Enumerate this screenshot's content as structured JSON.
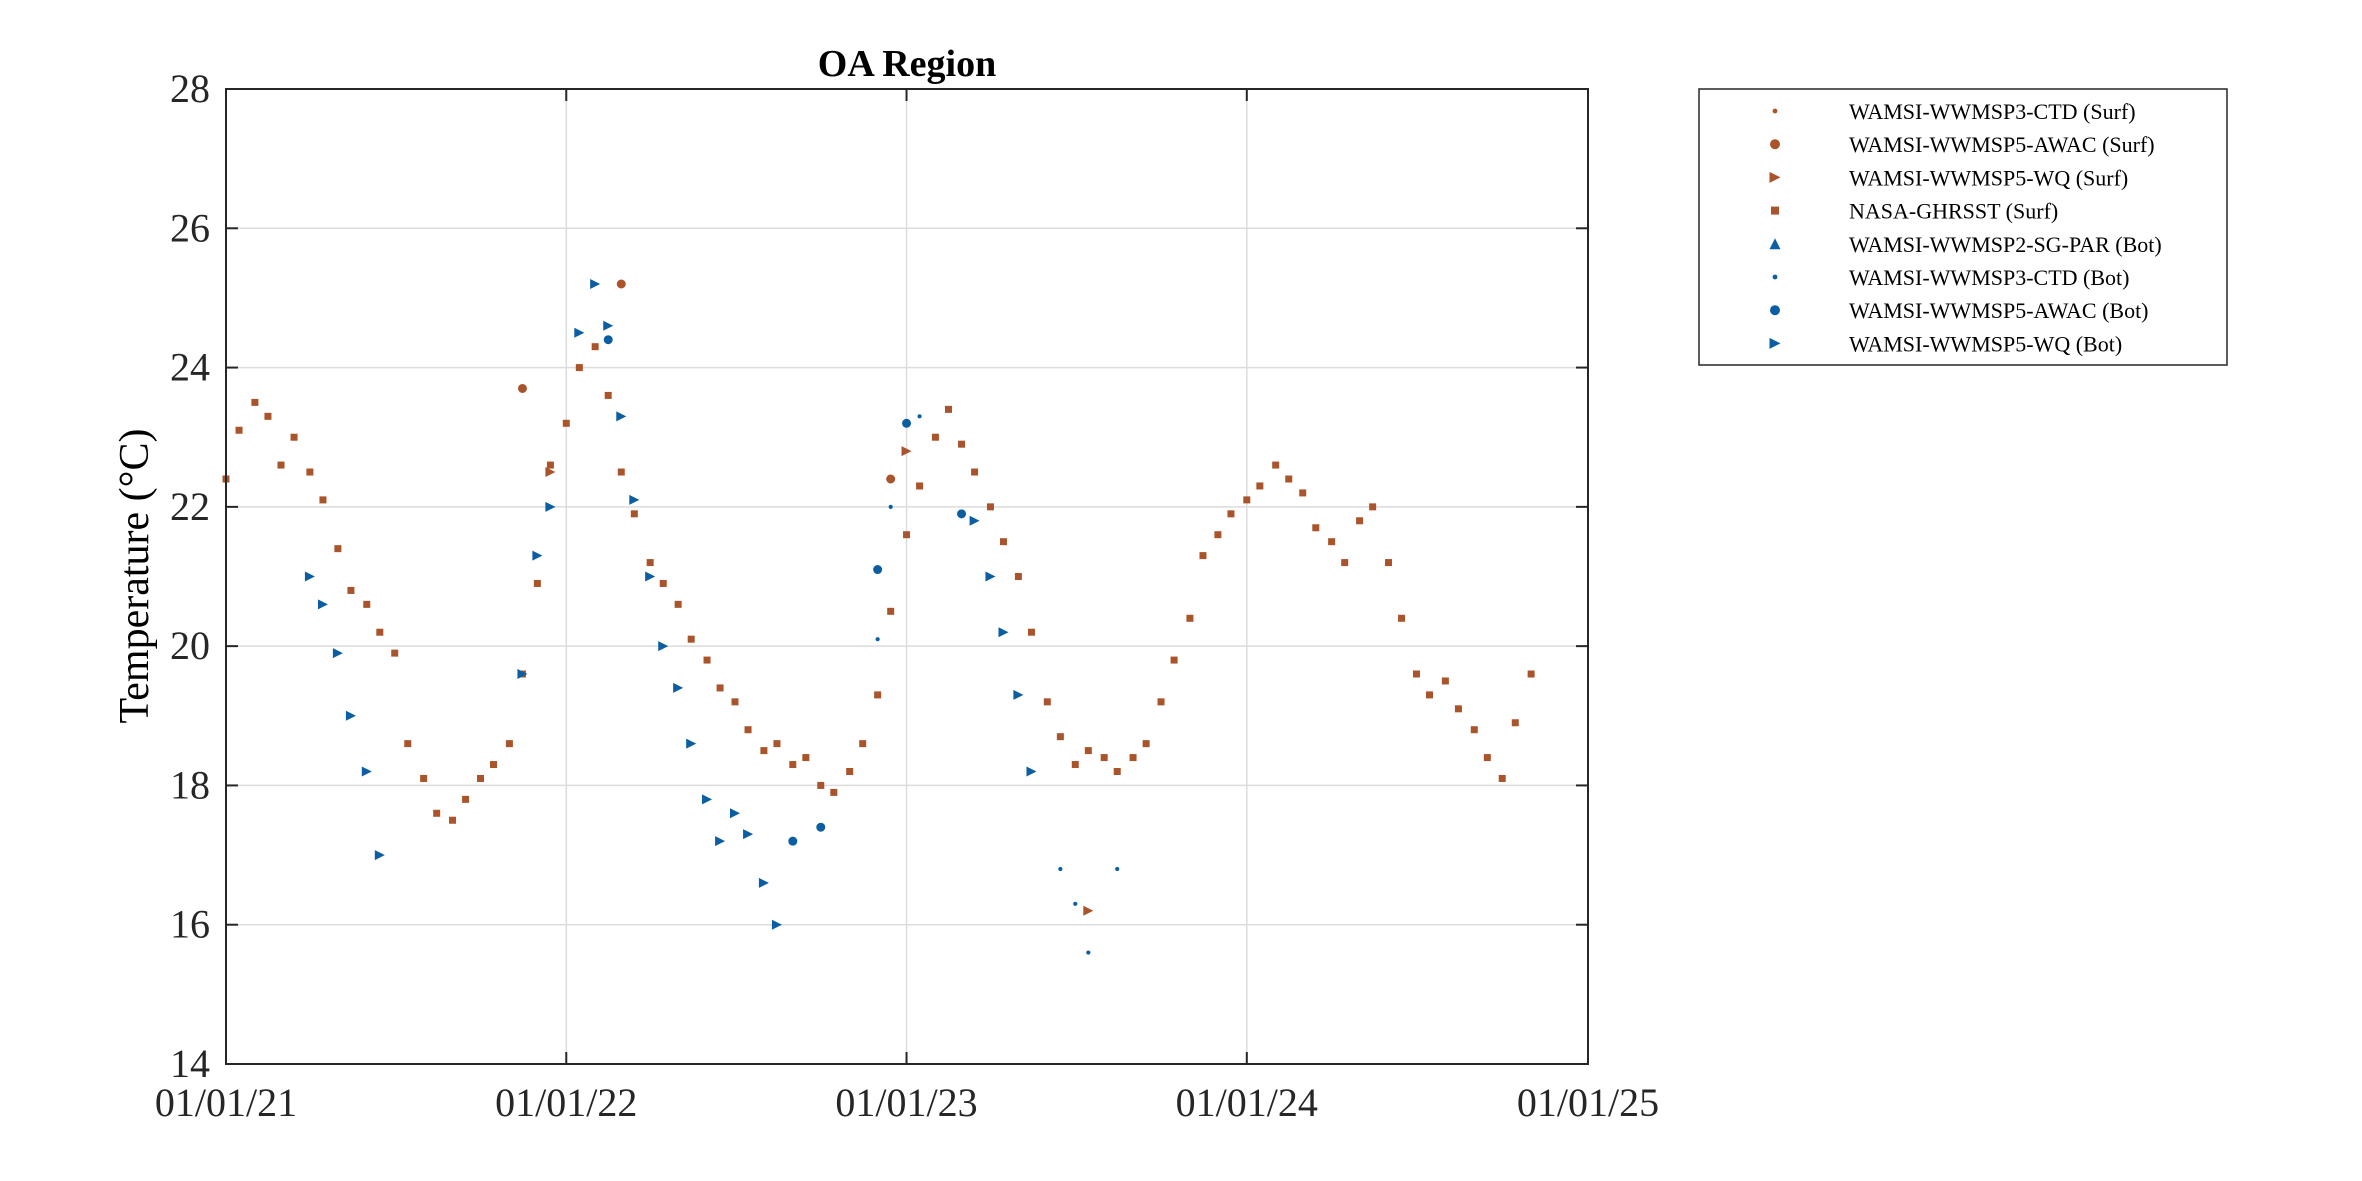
{
  "chart_data": {
    "type": "scatter",
    "title": "OA Region",
    "xlabel": "",
    "ylabel": "Temperature (°C)",
    "x_axis_type": "date",
    "xlim": [
      "2021-01-01",
      "2025-01-01"
    ],
    "ylim": [
      14,
      28
    ],
    "xticks": [
      "01/01/21",
      "01/01/22",
      "01/01/23",
      "01/01/24",
      "01/01/25"
    ],
    "yticks": [
      14,
      16,
      18,
      20,
      22,
      24,
      26,
      28
    ],
    "grid": true,
    "legend_position": "outside-top-right",
    "colors": {
      "surface": "#a9542a",
      "bottom": "#0c5ea3"
    },
    "legend": [
      {
        "label": "WAMSI-WWMSP3-CTD (Surf)",
        "marker": "dot",
        "color": "#a9542a"
      },
      {
        "label": "WAMSI-WWMSP5-AWAC (Surf)",
        "marker": "circle",
        "color": "#a9542a"
      },
      {
        "label": "WAMSI-WWMSP5-WQ (Surf)",
        "marker": "triangle-right",
        "color": "#a9542a"
      },
      {
        "label": "NASA-GHRSST (Surf)",
        "marker": "square",
        "color": "#a9542a"
      },
      {
        "label": "WAMSI-WWMSP2-SG-PAR (Bot)",
        "marker": "triangle-up",
        "color": "#0c5ea3"
      },
      {
        "label": "WAMSI-WWMSP3-CTD (Bot)",
        "marker": "dot",
        "color": "#0c5ea3"
      },
      {
        "label": "WAMSI-WWMSP5-AWAC (Bot)",
        "marker": "circle",
        "color": "#0c5ea3"
      },
      {
        "label": "WAMSI-WWMSP5-WQ (Bot)",
        "marker": "triangle-right",
        "color": "#0c5ea3"
      }
    ],
    "series": [
      {
        "name": "NASA-GHRSST (Surf)",
        "marker": "square",
        "color": "#a9542a",
        "x": [
          "2021-01-01",
          "2021-01-15",
          "2021-02-01",
          "2021-02-15",
          "2021-03-01",
          "2021-03-15",
          "2021-04-01",
          "2021-04-15",
          "2021-05-01",
          "2021-05-15",
          "2021-06-01",
          "2021-06-15",
          "2021-07-01",
          "2021-07-15",
          "2021-08-01",
          "2021-08-15",
          "2021-09-01",
          "2021-09-15",
          "2021-10-01",
          "2021-10-15",
          "2021-11-01",
          "2021-11-15",
          "2021-12-01",
          "2021-12-15",
          "2022-01-01",
          "2022-01-15",
          "2022-02-01",
          "2022-02-15",
          "2022-03-01",
          "2022-03-15",
          "2022-04-01",
          "2022-04-15",
          "2022-05-01",
          "2022-05-15",
          "2022-06-01",
          "2022-06-15",
          "2022-07-01",
          "2022-07-15",
          "2022-08-01",
          "2022-08-15",
          "2022-09-01",
          "2022-09-15",
          "2022-10-01",
          "2022-10-15",
          "2022-11-01",
          "2022-11-15",
          "2022-12-01",
          "2022-12-15",
          "2023-01-01",
          "2023-01-15",
          "2023-02-01",
          "2023-02-15",
          "2023-03-01",
          "2023-03-15",
          "2023-04-01",
          "2023-04-15",
          "2023-05-01",
          "2023-05-15",
          "2023-06-01",
          "2023-06-15",
          "2023-07-01",
          "2023-07-15",
          "2023-08-01",
          "2023-08-15",
          "2023-09-01",
          "2023-09-15",
          "2023-10-01",
          "2023-10-15",
          "2023-11-01",
          "2023-11-15",
          "2023-12-01",
          "2023-12-15",
          "2024-01-01",
          "2024-01-15",
          "2024-02-01",
          "2024-02-15",
          "2024-03-01",
          "2024-03-15",
          "2024-04-01",
          "2024-04-15",
          "2024-05-01",
          "2024-05-15",
          "2024-06-01",
          "2024-06-15",
          "2024-07-01",
          "2024-07-15",
          "2024-08-01",
          "2024-08-15",
          "2024-09-01",
          "2024-09-15",
          "2024-10-01",
          "2024-10-15",
          "2024-11-01"
        ],
        "y": [
          22.4,
          23.1,
          23.5,
          23.3,
          22.6,
          23.0,
          22.5,
          22.1,
          21.4,
          20.8,
          20.6,
          20.2,
          19.9,
          18.6,
          18.1,
          17.6,
          17.5,
          17.8,
          18.1,
          18.3,
          18.6,
          19.6,
          20.9,
          22.6,
          23.2,
          24.0,
          24.3,
          23.6,
          22.5,
          21.9,
          21.2,
          20.9,
          20.6,
          20.1,
          19.8,
          19.4,
          19.2,
          18.8,
          18.5,
          18.6,
          18.3,
          18.4,
          18.0,
          17.9,
          18.2,
          18.6,
          19.3,
          20.5,
          21.6,
          22.3,
          23.0,
          23.4,
          22.9,
          22.5,
          22.0,
          21.5,
          21.0,
          20.2,
          19.2,
          18.7,
          18.3,
          18.5,
          18.4,
          18.2,
          18.4,
          18.6,
          19.2,
          19.8,
          20.4,
          21.3,
          21.6,
          21.9,
          22.1,
          22.3,
          22.6,
          22.4,
          22.2,
          21.7,
          21.5,
          21.2,
          21.8,
          22.0,
          21.2,
          20.4,
          19.6,
          19.3,
          19.5,
          19.1,
          18.8,
          18.4,
          18.1,
          18.9,
          19.6
        ]
      },
      {
        "name": "WAMSI-WWMSP5-WQ (Bot)",
        "marker": "triangle-right",
        "color": "#0c5ea3",
        "x": [
          "2021-04-01",
          "2021-04-15",
          "2021-05-01",
          "2021-05-15",
          "2021-06-01",
          "2021-06-15",
          "2021-11-15",
          "2021-12-01",
          "2021-12-15",
          "2022-01-15",
          "2022-02-01",
          "2022-02-15",
          "2022-03-01",
          "2022-03-15",
          "2022-04-01",
          "2022-04-15",
          "2022-05-01",
          "2022-05-15",
          "2022-06-01",
          "2022-06-15",
          "2022-07-01",
          "2022-07-15",
          "2022-08-01",
          "2022-08-15",
          "2023-03-15",
          "2023-04-01",
          "2023-04-15",
          "2023-05-01",
          "2023-05-15"
        ],
        "y": [
          21.0,
          20.6,
          19.9,
          19.0,
          18.2,
          17.0,
          19.6,
          21.3,
          22.0,
          24.5,
          25.2,
          24.6,
          23.3,
          22.1,
          21.0,
          20.0,
          19.4,
          18.6,
          17.8,
          17.2,
          17.6,
          17.3,
          16.6,
          16.0,
          21.8,
          21.0,
          20.2,
          19.3,
          18.2
        ]
      },
      {
        "name": "WAMSI-WWMSP3-CTD (Bot)",
        "marker": "dot",
        "color": "#0c5ea3",
        "x": [
          "2022-12-01",
          "2022-12-15",
          "2023-01-15",
          "2023-06-15",
          "2023-07-01",
          "2023-07-15",
          "2023-08-15"
        ],
        "y": [
          20.1,
          22.0,
          23.3,
          16.8,
          16.3,
          15.6,
          16.8
        ]
      },
      {
        "name": "WAMSI-WWMSP5-AWAC (Bot)",
        "marker": "circle",
        "color": "#0c5ea3",
        "x": [
          "2022-02-15",
          "2022-09-01",
          "2022-10-01",
          "2022-12-01",
          "2023-01-01",
          "2023-03-01"
        ],
        "y": [
          24.4,
          17.2,
          17.4,
          21.1,
          23.2,
          21.9
        ]
      },
      {
        "name": "WAMSI-WWMSP5-AWAC (Surf)",
        "marker": "circle",
        "color": "#a9542a",
        "x": [
          "2021-11-15",
          "2022-03-01",
          "2022-12-15"
        ],
        "y": [
          23.7,
          25.2,
          22.4
        ]
      },
      {
        "name": "WAMSI-WWMSP5-WQ (Surf)",
        "marker": "triangle-right",
        "color": "#a9542a",
        "x": [
          "2021-12-15",
          "2023-01-01",
          "2023-07-15"
        ],
        "y": [
          22.5,
          22.8,
          16.2
        ]
      }
    ]
  }
}
